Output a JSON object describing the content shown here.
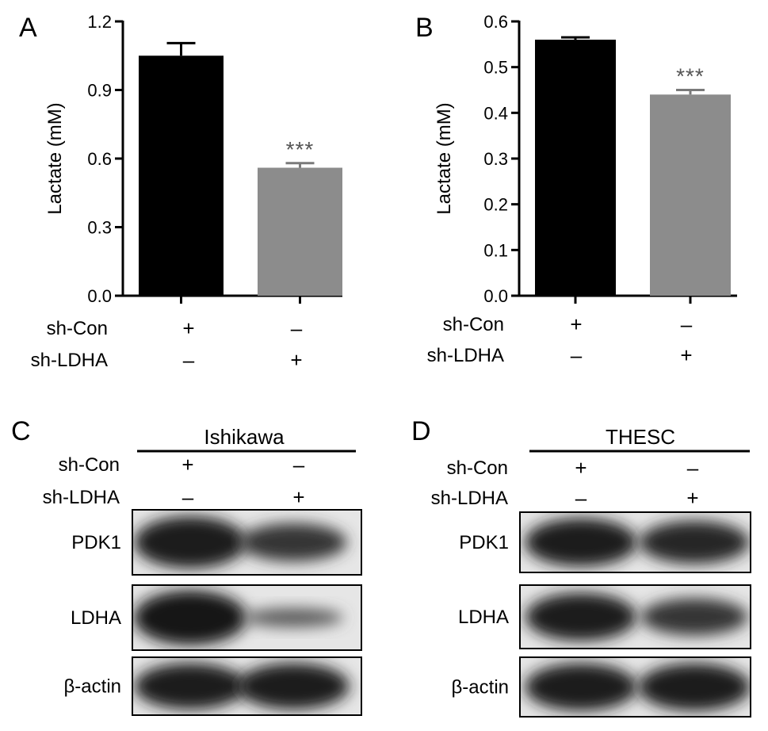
{
  "panels": {
    "A": "A",
    "B": "B",
    "C": "C",
    "D": "D"
  },
  "chart_data": [
    {
      "panel": "A",
      "type": "bar",
      "categories": [
        "sh-Con +/sh-LDHA –",
        "sh-Con –/sh-LDHA +"
      ],
      "values": [
        1.05,
        0.56
      ],
      "errors": [
        0.055,
        0.02
      ],
      "bar_colors": [
        "#000000",
        "#8c8c8c"
      ],
      "significance": [
        "",
        "***"
      ],
      "ylabel": "Lactate (mM)",
      "ylim": [
        0,
        1.2
      ],
      "yticks": [
        "0.0",
        "0.3",
        "0.6",
        "0.9",
        "1.2"
      ],
      "ytick_values": [
        0,
        0.3,
        0.6,
        0.9,
        1.2
      ],
      "rows": [
        {
          "label": "sh-Con",
          "signs": [
            "+",
            "–"
          ]
        },
        {
          "label": "sh-LDHA",
          "signs": [
            "–",
            "+"
          ]
        }
      ]
    },
    {
      "panel": "B",
      "type": "bar",
      "categories": [
        "sh-Con +/sh-LDHA –",
        "sh-Con –/sh-LDHA +"
      ],
      "values": [
        0.56,
        0.44
      ],
      "errors": [
        0.005,
        0.01
      ],
      "bar_colors": [
        "#000000",
        "#8c8c8c"
      ],
      "significance": [
        "",
        "***"
      ],
      "ylabel": "Lactate (mM)",
      "ylim": [
        0,
        0.6
      ],
      "yticks": [
        "0.0",
        "0.1",
        "0.2",
        "0.3",
        "0.4",
        "0.5",
        "0.6"
      ],
      "ytick_values": [
        0,
        0.1,
        0.2,
        0.3,
        0.4,
        0.5,
        0.6
      ],
      "rows": [
        {
          "label": "sh-Con",
          "signs": [
            "+",
            "–"
          ]
        },
        {
          "label": "sh-LDHA",
          "signs": [
            "–",
            "+"
          ]
        }
      ]
    }
  ],
  "blots": {
    "C": {
      "header": "Ishikawa",
      "rows": [
        {
          "label": "sh-Con",
          "signs": [
            "+",
            "–"
          ]
        },
        {
          "label": "sh-LDHA",
          "signs": [
            "–",
            "+"
          ]
        }
      ],
      "bands": [
        {
          "label": "PDK1",
          "intensity": [
            0.95,
            0.7
          ]
        },
        {
          "label": "LDHA",
          "intensity": [
            1.0,
            0.35
          ]
        },
        {
          "label": "β-actin",
          "intensity": [
            0.95,
            0.95
          ]
        }
      ]
    },
    "D": {
      "header": "THESC",
      "rows": [
        {
          "label": "sh-Con",
          "signs": [
            "+",
            "–"
          ]
        },
        {
          "label": "sh-LDHA",
          "signs": [
            "–",
            "+"
          ]
        }
      ],
      "bands": [
        {
          "label": "PDK1",
          "intensity": [
            0.95,
            0.85
          ]
        },
        {
          "label": "LDHA",
          "intensity": [
            0.9,
            0.7
          ]
        },
        {
          "label": "β-actin",
          "intensity": [
            0.95,
            0.95
          ]
        }
      ]
    }
  }
}
